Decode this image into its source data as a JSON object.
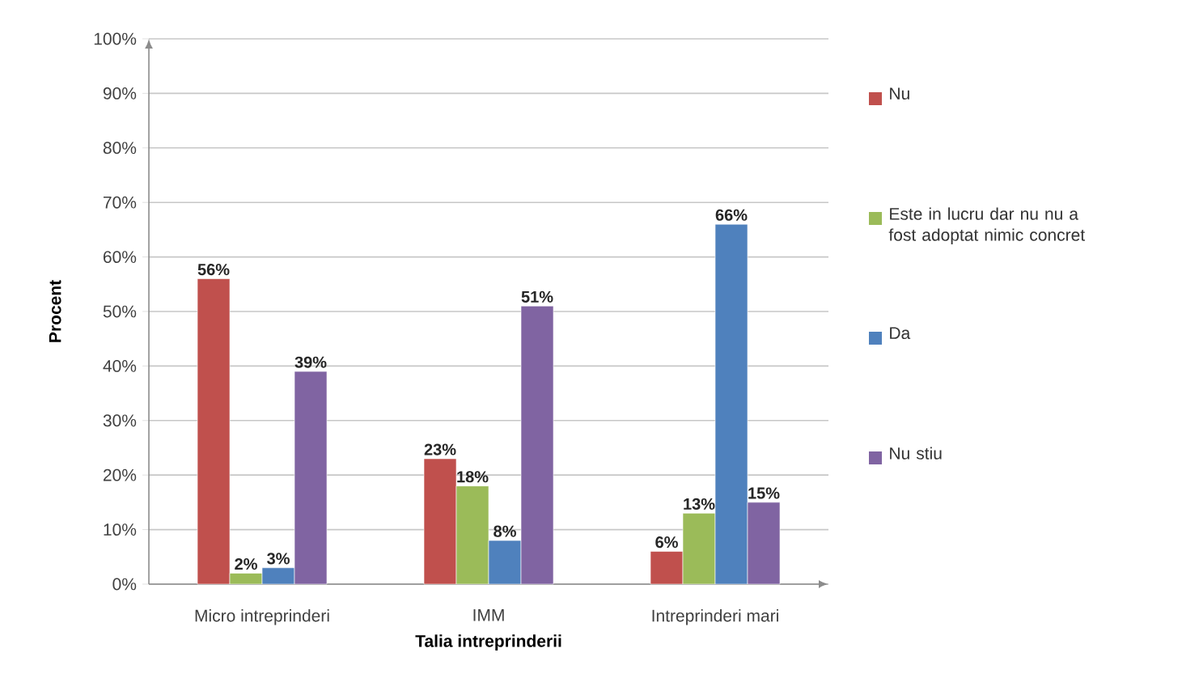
{
  "chart_data": {
    "type": "bar",
    "xlabel": "Talia intreprinderii",
    "ylabel": "Procent",
    "categories": [
      "Micro intreprinderi",
      "IMM",
      "Intreprinderi mari"
    ],
    "series": [
      {
        "name": "Nu",
        "color": "#c0504d",
        "values": [
          56,
          23,
          6
        ],
        "value_labels": [
          "56%",
          "23%",
          "6%"
        ]
      },
      {
        "name": "Este in lucru dar nu nu a fost adoptat nimic concret",
        "color": "#9bbb59",
        "values": [
          2,
          18,
          13
        ],
        "value_labels": [
          "2%",
          "18%",
          "13%"
        ]
      },
      {
        "name": "Da",
        "color": "#4f81bd",
        "values": [
          3,
          8,
          66
        ],
        "value_labels": [
          "3%",
          "8%",
          "66%"
        ]
      },
      {
        "name": "Nu stiu",
        "color": "#8064a2",
        "values": [
          39,
          51,
          15
        ],
        "value_labels": [
          "39%",
          "51%",
          "15%"
        ]
      }
    ],
    "ylim": [
      0,
      100
    ],
    "yticks": [
      {
        "value": 0,
        "label": "0%"
      },
      {
        "value": 10,
        "label": "10%"
      },
      {
        "value": 20,
        "label": "20%"
      },
      {
        "value": 30,
        "label": "30%"
      },
      {
        "value": 40,
        "label": "40%"
      },
      {
        "value": 50,
        "label": "50%"
      },
      {
        "value": 60,
        "label": "60%"
      },
      {
        "value": 70,
        "label": "70%"
      },
      {
        "value": 80,
        "label": "80%"
      },
      {
        "value": 90,
        "label": "90%"
      },
      {
        "value": 100,
        "label": "100%"
      }
    ],
    "grid": "y",
    "legend": "right"
  }
}
